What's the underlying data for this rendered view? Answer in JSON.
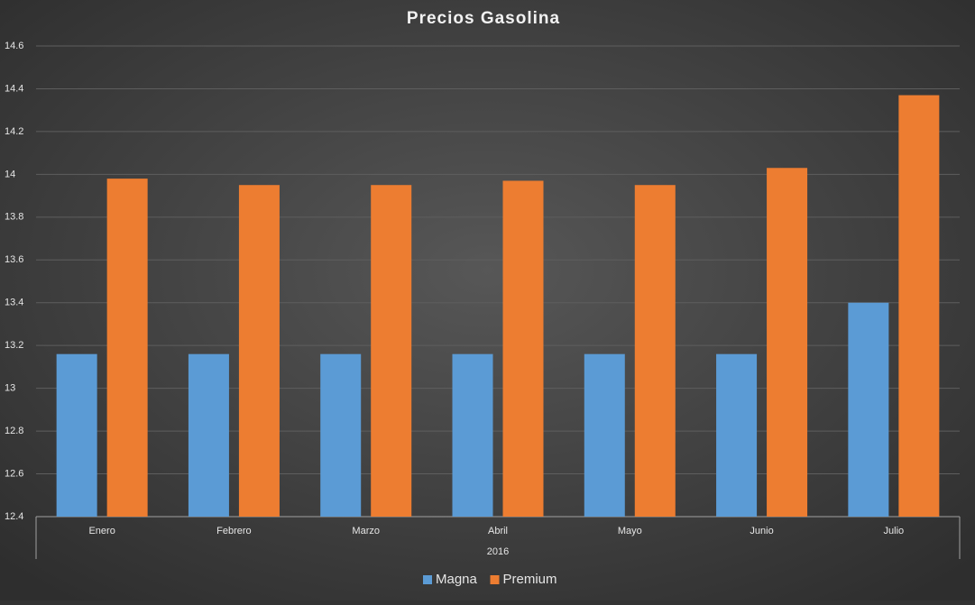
{
  "chart_data": {
    "type": "bar",
    "title": "Precios Gasolina",
    "categories": [
      "Enero",
      "Febrero",
      "Marzo",
      "Abril",
      "Mayo",
      "Junio",
      "Julio"
    ],
    "x_group_label": "2016",
    "series": [
      {
        "name": "Magna",
        "color": "#5b9bd5",
        "values": [
          13.16,
          13.16,
          13.16,
          13.16,
          13.16,
          13.16,
          13.4
        ]
      },
      {
        "name": "Premium",
        "color": "#ed7d31",
        "values": [
          13.98,
          13.95,
          13.95,
          13.97,
          13.95,
          14.03,
          14.37
        ]
      }
    ],
    "ylim": [
      12.4,
      14.6
    ],
    "yticks": [
      12.4,
      12.6,
      12.8,
      13,
      13.2,
      13.4,
      13.6,
      13.8,
      14,
      14.2,
      14.4,
      14.6
    ],
    "grid": true,
    "legend": "bottom"
  }
}
